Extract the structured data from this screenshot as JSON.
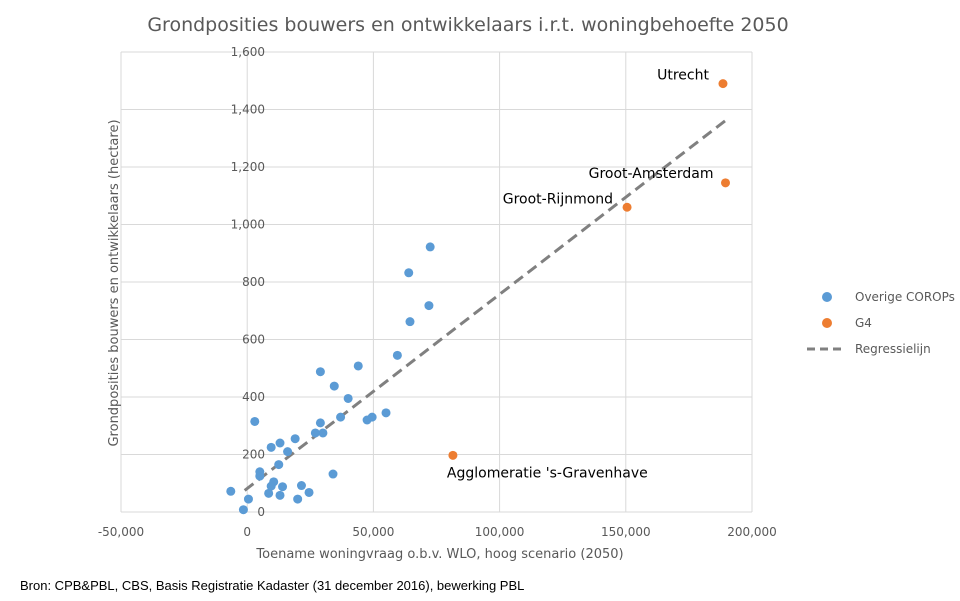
{
  "chart_data": {
    "type": "scatter",
    "title": "Grondposities bouwers en ontwikkelaars i.r.t. woningbehoefte 2050",
    "xlabel": "Toename woningvraag o.b.v. WLO, hoog scenario (2050)",
    "ylabel": "Grondposities bouwers en ontwikkelaars (hectare)",
    "xlim": [
      -50000,
      200000
    ],
    "ylim": [
      0,
      1600
    ],
    "x_ticks": [
      -50000,
      0,
      50000,
      100000,
      150000,
      200000
    ],
    "x_tick_labels": [
      "-50,000",
      "0",
      "50,000",
      "100,000",
      "150,000",
      "200,000"
    ],
    "y_ticks": [
      0,
      200,
      400,
      600,
      800,
      1000,
      1200,
      1400,
      1600
    ],
    "y_tick_labels": [
      "0",
      "200",
      "400",
      "600",
      "800",
      "1,000",
      "1,200",
      "1,400",
      "1,600"
    ],
    "grid": true,
    "legend": "right",
    "series": [
      {
        "name": "Overige COROPs",
        "color": "#5b9bd5",
        "points": [
          [
            -6500,
            72
          ],
          [
            -1500,
            8
          ],
          [
            500,
            45
          ],
          [
            3000,
            315
          ],
          [
            5000,
            140
          ],
          [
            5000,
            125
          ],
          [
            8500,
            65
          ],
          [
            9500,
            225
          ],
          [
            9500,
            90
          ],
          [
            10500,
            105
          ],
          [
            12500,
            165
          ],
          [
            13000,
            240
          ],
          [
            13000,
            58
          ],
          [
            14000,
            88
          ],
          [
            16000,
            210
          ],
          [
            19000,
            255
          ],
          [
            20000,
            45
          ],
          [
            21500,
            92
          ],
          [
            24500,
            68
          ],
          [
            27000,
            275
          ],
          [
            29000,
            310
          ],
          [
            29000,
            488
          ],
          [
            30000,
            275
          ],
          [
            34000,
            132
          ],
          [
            34500,
            438
          ],
          [
            37000,
            330
          ],
          [
            40000,
            395
          ],
          [
            44000,
            508
          ],
          [
            47500,
            320
          ],
          [
            49500,
            330
          ],
          [
            55000,
            345
          ],
          [
            59500,
            545
          ],
          [
            64000,
            832
          ],
          [
            64500,
            662
          ],
          [
            72000,
            718
          ],
          [
            72500,
            922
          ]
        ]
      },
      {
        "name": "G4",
        "color": "#ed7d31",
        "points": [
          [
            81500,
            197
          ],
          [
            150500,
            1060
          ],
          [
            188500,
            1490
          ],
          [
            189500,
            1145
          ]
        ],
        "labels": [
          "Agglomeratie 's-Gravenhave",
          "Groot-Rijnmond",
          "Utrecht",
          "Groot-Amsterdam"
        ]
      },
      {
        "name": "Regressielijn",
        "color": "#808080",
        "style": "dashed",
        "line": [
          [
            -1000,
            75
          ],
          [
            190000,
            1365
          ]
        ]
      }
    ]
  },
  "source": "Bron: CPB&PBL, CBS, Basis Registratie Kadaster (31 december 2016), bewerking PBL"
}
